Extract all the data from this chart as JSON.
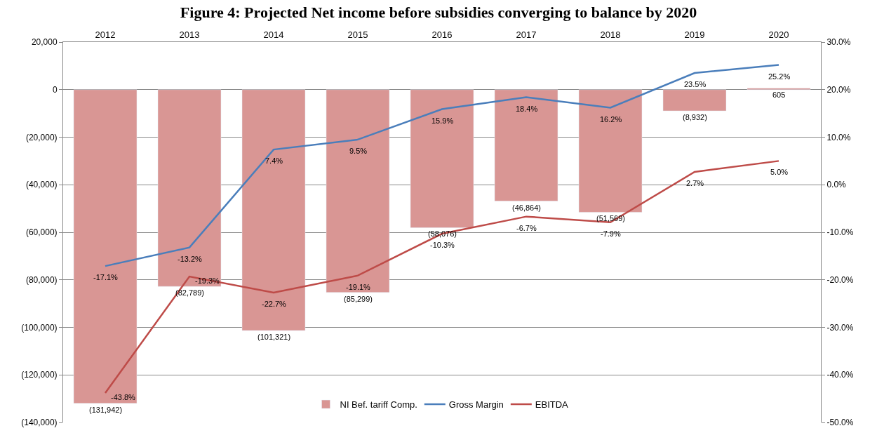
{
  "chart_data": {
    "type": "bar",
    "title": "Figure 4: Projected Net income before subsidies converging to balance by 2020",
    "categories": [
      "2012",
      "2013",
      "2014",
      "2015",
      "2016",
      "2017",
      "2018",
      "2019",
      "2020"
    ],
    "series": [
      {
        "name": "NI Bef. tariff Comp.",
        "color": "#d99694",
        "values": [
          -131942,
          -82789,
          -101321,
          -85299,
          -58076,
          -46864,
          -51569,
          -8932,
          605
        ],
        "value_labels": [
          "(131,942)",
          "(82,789)",
          "(101,321)",
          "(85,299)",
          "(58,076)",
          "(46,864)",
          "(51,569)",
          "(8,932)",
          "605"
        ]
      },
      {
        "name": "Gross Margin",
        "type": "line",
        "axis": "y2",
        "color": "#4a7ebb",
        "values": [
          -17.1,
          -13.2,
          7.4,
          9.5,
          15.9,
          18.4,
          16.2,
          23.5,
          25.2
        ],
        "value_labels": [
          "-17.1%",
          "-13.2%",
          "7.4%",
          "9.5%",
          "15.9%",
          "18.4%",
          "16.2%",
          "23.5%",
          "25.2%"
        ]
      },
      {
        "name": "EBITDA",
        "type": "line",
        "axis": "y2",
        "color": "#be4b48",
        "values": [
          -43.8,
          -19.3,
          -22.7,
          -19.1,
          -10.3,
          -6.7,
          -7.9,
          2.7,
          5.0
        ],
        "value_labels": [
          "-43.8%",
          "-19.3%",
          "-22.7%",
          "-19.1%",
          "-10.3%",
          "-6.7%",
          "-7.9%",
          "2.7%",
          "5.0%"
        ]
      }
    ],
    "ylim": [
      -140000,
      20000
    ],
    "yticks": [
      {
        "value": -140000,
        "label": "(140,000)"
      },
      {
        "value": -120000,
        "label": "(120,000)"
      },
      {
        "value": -100000,
        "label": "(100,000)"
      },
      {
        "value": -80000,
        "label": "(80,000)"
      },
      {
        "value": -60000,
        "label": "(60,000)"
      },
      {
        "value": -40000,
        "label": "(40,000)"
      },
      {
        "value": -20000,
        "label": "(20,000)"
      },
      0,
      {
        "value": 20000,
        "label": "20,000"
      }
    ],
    "y2lim": [
      -50,
      30
    ],
    "y2ticks": [
      {
        "value": -50,
        "label": "-50.0%"
      },
      {
        "value": -40,
        "label": "-40.0%"
      },
      {
        "value": -30,
        "label": "-30.0%"
      },
      {
        "value": -20,
        "label": "-20.0%"
      },
      {
        "value": -10,
        "label": "-10.0%"
      },
      {
        "value": 0,
        "label": "0.0%"
      },
      {
        "value": 10,
        "label": "10.0%"
      },
      {
        "value": 20,
        "label": "20.0%"
      },
      {
        "value": 30,
        "label": "30.0%"
      }
    ],
    "grid": "y",
    "legend": "bottom",
    "marker": "none",
    "line_style": "solid"
  }
}
